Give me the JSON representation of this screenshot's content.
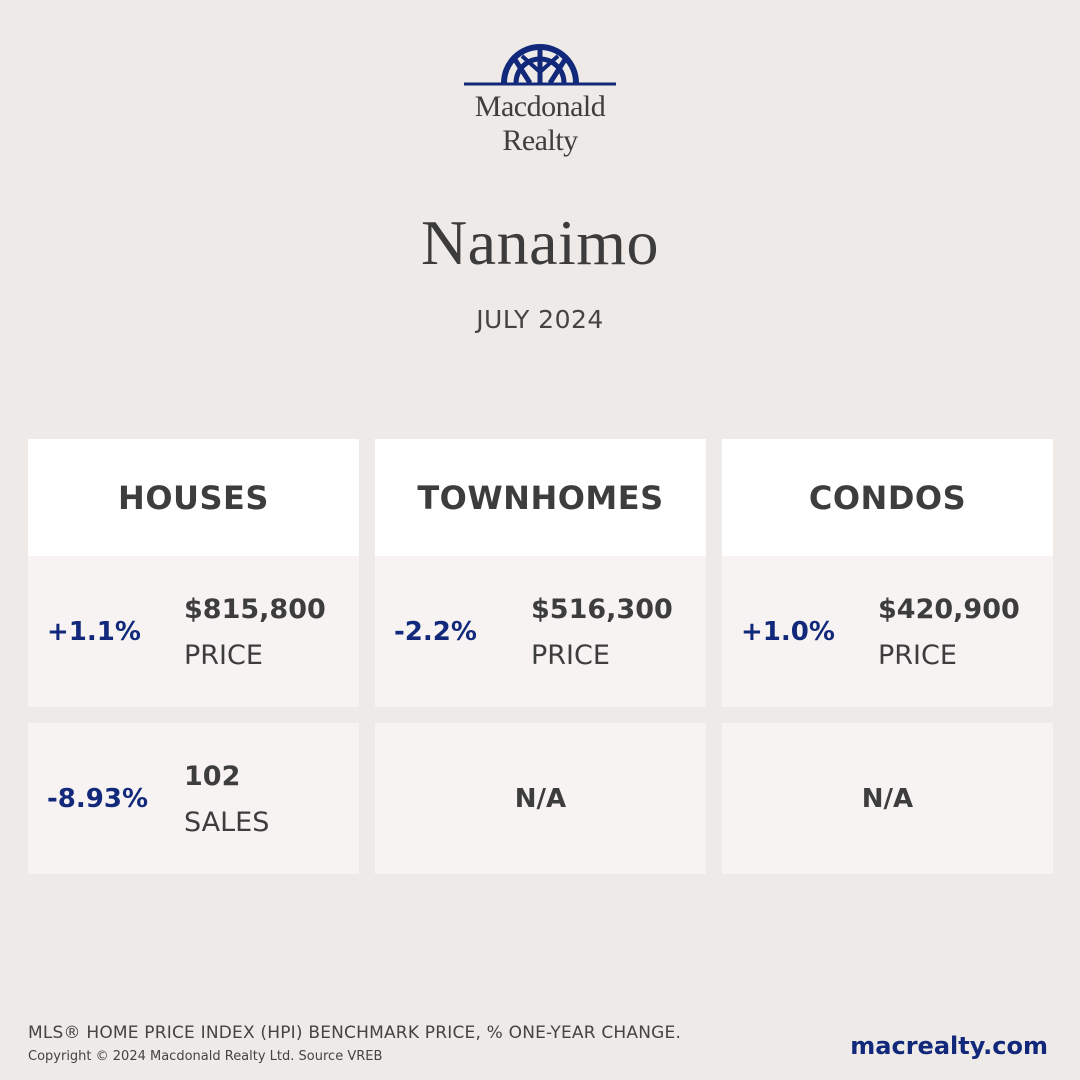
{
  "brand": {
    "name_line1": "Macdonald",
    "name_line2": "Realty",
    "color": "#12287a"
  },
  "header": {
    "city": "Nanaimo",
    "period": "JULY 2024"
  },
  "columns": [
    {
      "title": "HOUSES",
      "price": {
        "change": "+1.1%",
        "value": "$815,800",
        "label": "PRICE"
      },
      "sales": {
        "change": "-8.93%",
        "value": "102",
        "label": "SALES"
      }
    },
    {
      "title": "TOWNHOMES",
      "price": {
        "change": "-2.2%",
        "value": "$516,300",
        "label": "PRICE"
      },
      "sales": {
        "na": "N/A"
      }
    },
    {
      "title": "CONDOS",
      "price": {
        "change": "+1.0%",
        "value": "$420,900",
        "label": "PRICE"
      },
      "sales": {
        "na": "N/A"
      }
    }
  ],
  "footer": {
    "note": "MLS® HOME PRICE INDEX (HPI) BENCHMARK PRICE, % ONE-YEAR CHANGE.",
    "copyright": "Copyright © 2024 Macdonald Realty Ltd. Source VREB",
    "website": "macrealty.com"
  },
  "colors": {
    "background": "#eeeae7",
    "header_card": "#ffffff",
    "data_card": "#f6f3f2",
    "accent": "#12287a",
    "text": "#3d3d3d"
  }
}
